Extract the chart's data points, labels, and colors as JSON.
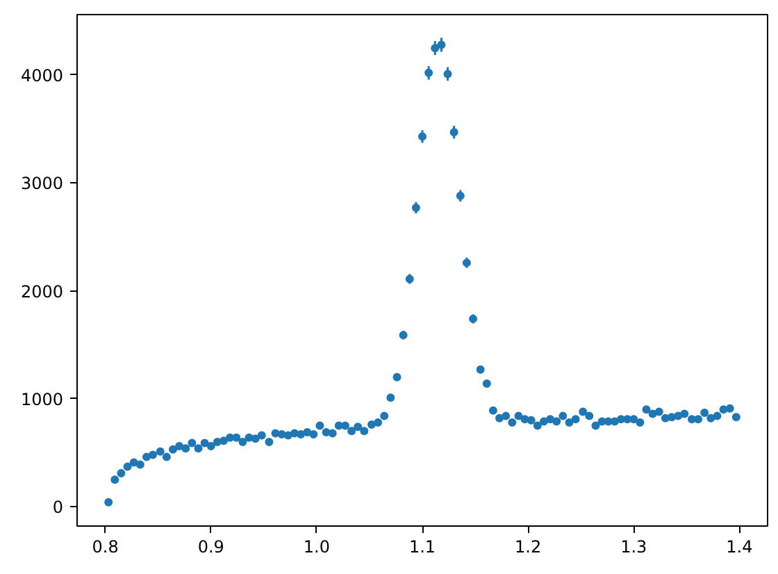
{
  "chart_data": {
    "type": "scatter",
    "color": "#1f77b4",
    "marker": "circle",
    "grid": false,
    "xlim": [
      0.7733,
      1.4267
    ],
    "ylim": [
      -180,
      4560
    ],
    "xticks": [
      0.8,
      0.9,
      {
        "value": 1,
        "label": "1.0"
      },
      1.1,
      1.2,
      1.3,
      1.4
    ],
    "yticks": [
      0,
      1000,
      2000,
      3000,
      4000
    ],
    "x": [
      0.803,
      0.809,
      0.815,
      0.821,
      0.827,
      0.833,
      0.839,
      0.845,
      0.852,
      0.858,
      0.864,
      0.87,
      0.876,
      0.882,
      0.888,
      0.894,
      0.9,
      0.906,
      0.912,
      0.918,
      0.924,
      0.93,
      0.936,
      0.942,
      0.948,
      0.955,
      0.961,
      0.967,
      0.973,
      0.979,
      0.985,
      0.991,
      0.997,
      1.003,
      1.009,
      1.015,
      1.021,
      1.027,
      1.033,
      1.039,
      1.045,
      1.052,
      1.058,
      1.064,
      1.07,
      1.076,
      1.082,
      1.088,
      1.094,
      1.1,
      1.106,
      1.112,
      1.118,
      1.124,
      1.13,
      1.136,
      1.142,
      1.148,
      1.155,
      1.161,
      1.167,
      1.173,
      1.179,
      1.185,
      1.191,
      1.197,
      1.203,
      1.209,
      1.215,
      1.221,
      1.227,
      1.233,
      1.239,
      1.245,
      1.252,
      1.258,
      1.264,
      1.27,
      1.276,
      1.282,
      1.288,
      1.294,
      1.3,
      1.306,
      1.312,
      1.318,
      1.324,
      1.33,
      1.336,
      1.342,
      1.348,
      1.355,
      1.361,
      1.367,
      1.373,
      1.379,
      1.385,
      1.391,
      1.397
    ],
    "values": [
      40,
      250,
      310,
      370,
      410,
      390,
      460,
      480,
      510,
      460,
      530,
      560,
      540,
      590,
      540,
      590,
      560,
      600,
      610,
      640,
      640,
      600,
      640,
      630,
      660,
      600,
      680,
      670,
      660,
      680,
      670,
      690,
      670,
      750,
      690,
      680,
      750,
      750,
      700,
      740,
      700,
      760,
      780,
      840,
      1010,
      1200,
      1590,
      2110,
      2770,
      3430,
      4020,
      4250,
      4280,
      4010,
      3470,
      2880,
      2260,
      1740,
      1270,
      1140,
      890,
      820,
      840,
      780,
      840,
      810,
      800,
      750,
      790,
      810,
      790,
      840,
      780,
      810,
      880,
      840,
      750,
      790,
      790,
      790,
      810,
      810,
      810,
      780,
      900,
      860,
      880,
      820,
      830,
      840,
      860,
      810,
      810,
      870,
      820,
      840,
      900,
      910,
      830
    ],
    "errors": [
      null,
      null,
      null,
      null,
      null,
      null,
      null,
      null,
      null,
      null,
      null,
      null,
      null,
      null,
      null,
      null,
      null,
      null,
      null,
      null,
      null,
      null,
      null,
      null,
      null,
      null,
      null,
      null,
      null,
      null,
      null,
      null,
      null,
      null,
      null,
      null,
      null,
      null,
      null,
      null,
      null,
      null,
      null,
      null,
      null,
      null,
      40,
      46,
      53,
      59,
      63,
      65,
      65,
      63,
      59,
      54,
      48,
      42,
      36,
      null,
      null,
      null,
      null,
      null,
      null,
      null,
      null,
      null,
      null,
      null,
      null,
      null,
      null,
      null,
      null,
      null,
      null,
      null,
      null,
      null,
      null,
      null,
      null,
      null,
      null,
      null,
      null,
      null,
      null,
      null,
      null,
      null,
      null,
      null,
      null,
      null,
      null,
      null,
      null
    ]
  }
}
